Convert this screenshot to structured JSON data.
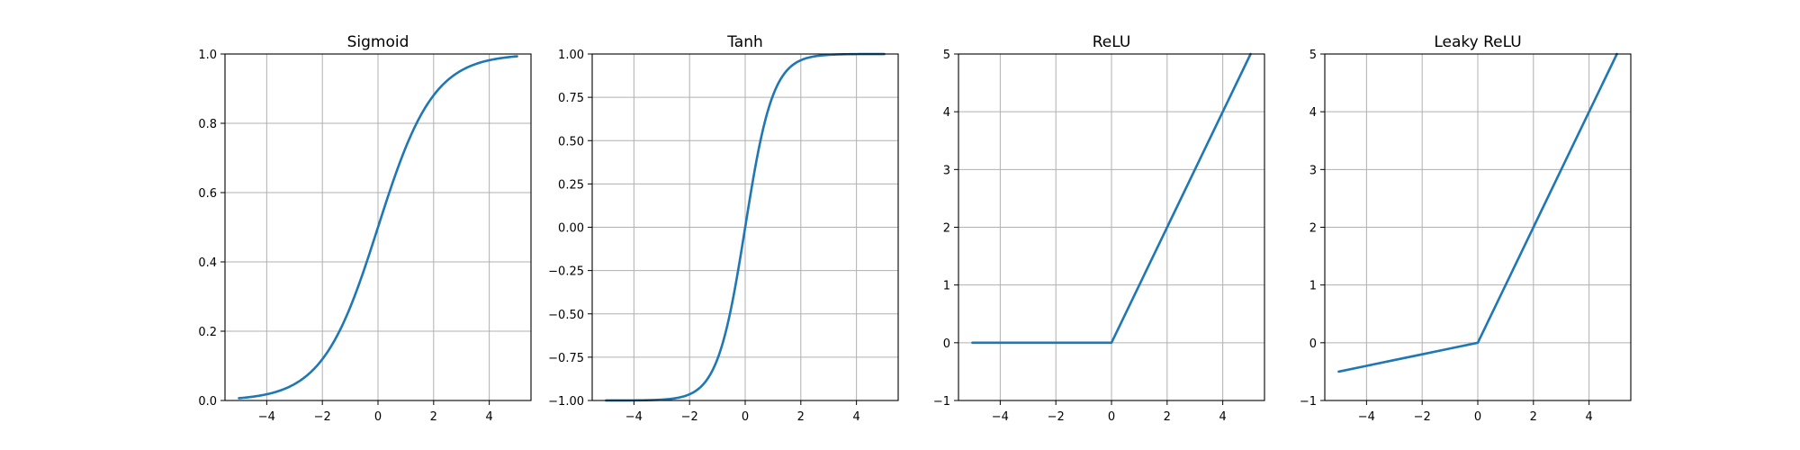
{
  "chart_data": [
    {
      "type": "line",
      "title": "Sigmoid",
      "xlim": [
        -5.5,
        5.5
      ],
      "ylim": [
        0.0,
        1.0
      ],
      "xticks": [
        -4,
        -2,
        0,
        2,
        4
      ],
      "xtick_labels": [
        "−4",
        "−2",
        "0",
        "2",
        "4"
      ],
      "yticks": [
        0.0,
        0.2,
        0.4,
        0.6,
        0.8,
        1.0
      ],
      "ytick_labels": [
        "0.0",
        "0.2",
        "0.4",
        "0.6",
        "0.8",
        "1.0"
      ],
      "grid": true,
      "series": [
        {
          "color": "#1f77b4",
          "x": [
            -5,
            -4,
            -3,
            -2,
            -1,
            0,
            1,
            2,
            3,
            4,
            5
          ],
          "y": [
            0.0067,
            0.018,
            0.047,
            0.119,
            0.269,
            0.5,
            0.731,
            0.881,
            0.953,
            0.982,
            0.9933
          ]
        }
      ]
    },
    {
      "type": "line",
      "title": "Tanh",
      "xlim": [
        -5.5,
        5.5
      ],
      "ylim": [
        -1.0,
        1.0
      ],
      "xticks": [
        -4,
        -2,
        0,
        2,
        4
      ],
      "xtick_labels": [
        "−4",
        "−2",
        "0",
        "2",
        "4"
      ],
      "yticks": [
        -1.0,
        -0.75,
        -0.5,
        -0.25,
        0.0,
        0.25,
        0.5,
        0.75,
        1.0
      ],
      "ytick_labels": [
        "−1.00",
        "−0.75",
        "−0.50",
        "−0.25",
        "0.00",
        "0.25",
        "0.50",
        "0.75",
        "1.00"
      ],
      "grid": true,
      "series": [
        {
          "color": "#1f77b4",
          "x": [
            -5,
            -4,
            -3,
            -2,
            -1.5,
            -1,
            -0.5,
            0,
            0.5,
            1,
            1.5,
            2,
            3,
            4,
            5
          ],
          "y": [
            -0.9999,
            -0.9993,
            -0.995,
            -0.964,
            -0.905,
            -0.762,
            -0.462,
            0.0,
            0.462,
            0.762,
            0.905,
            0.964,
            0.995,
            0.9993,
            0.9999
          ]
        }
      ]
    },
    {
      "type": "line",
      "title": "ReLU",
      "xlim": [
        -5.5,
        5.5
      ],
      "ylim": [
        -1,
        5
      ],
      "xticks": [
        -4,
        -2,
        0,
        2,
        4
      ],
      "xtick_labels": [
        "−4",
        "−2",
        "0",
        "2",
        "4"
      ],
      "yticks": [
        -1,
        0,
        1,
        2,
        3,
        4,
        5
      ],
      "ytick_labels": [
        "−1",
        "0",
        "1",
        "2",
        "3",
        "4",
        "5"
      ],
      "grid": true,
      "series": [
        {
          "color": "#1f77b4",
          "x": [
            -5,
            -4,
            -3,
            -2,
            -1,
            0,
            1,
            2,
            3,
            4,
            5
          ],
          "y": [
            0,
            0,
            0,
            0,
            0,
            0,
            1,
            2,
            3,
            4,
            5
          ]
        }
      ]
    },
    {
      "type": "line",
      "title": "Leaky ReLU",
      "xlim": [
        -5.5,
        5.5
      ],
      "ylim": [
        -1,
        5
      ],
      "xticks": [
        -4,
        -2,
        0,
        2,
        4
      ],
      "xtick_labels": [
        "−4",
        "−2",
        "0",
        "2",
        "4"
      ],
      "yticks": [
        -1,
        0,
        1,
        2,
        3,
        4,
        5
      ],
      "ytick_labels": [
        "−1",
        "0",
        "1",
        "2",
        "3",
        "4",
        "5"
      ],
      "grid": true,
      "series": [
        {
          "color": "#1f77b4",
          "x": [
            -5,
            -4,
            -3,
            -2,
            -1,
            0,
            1,
            2,
            3,
            4,
            5
          ],
          "y": [
            -0.5,
            -0.4,
            -0.3,
            -0.2,
            -0.1,
            0,
            1,
            2,
            3,
            4,
            5
          ]
        }
      ]
    }
  ]
}
